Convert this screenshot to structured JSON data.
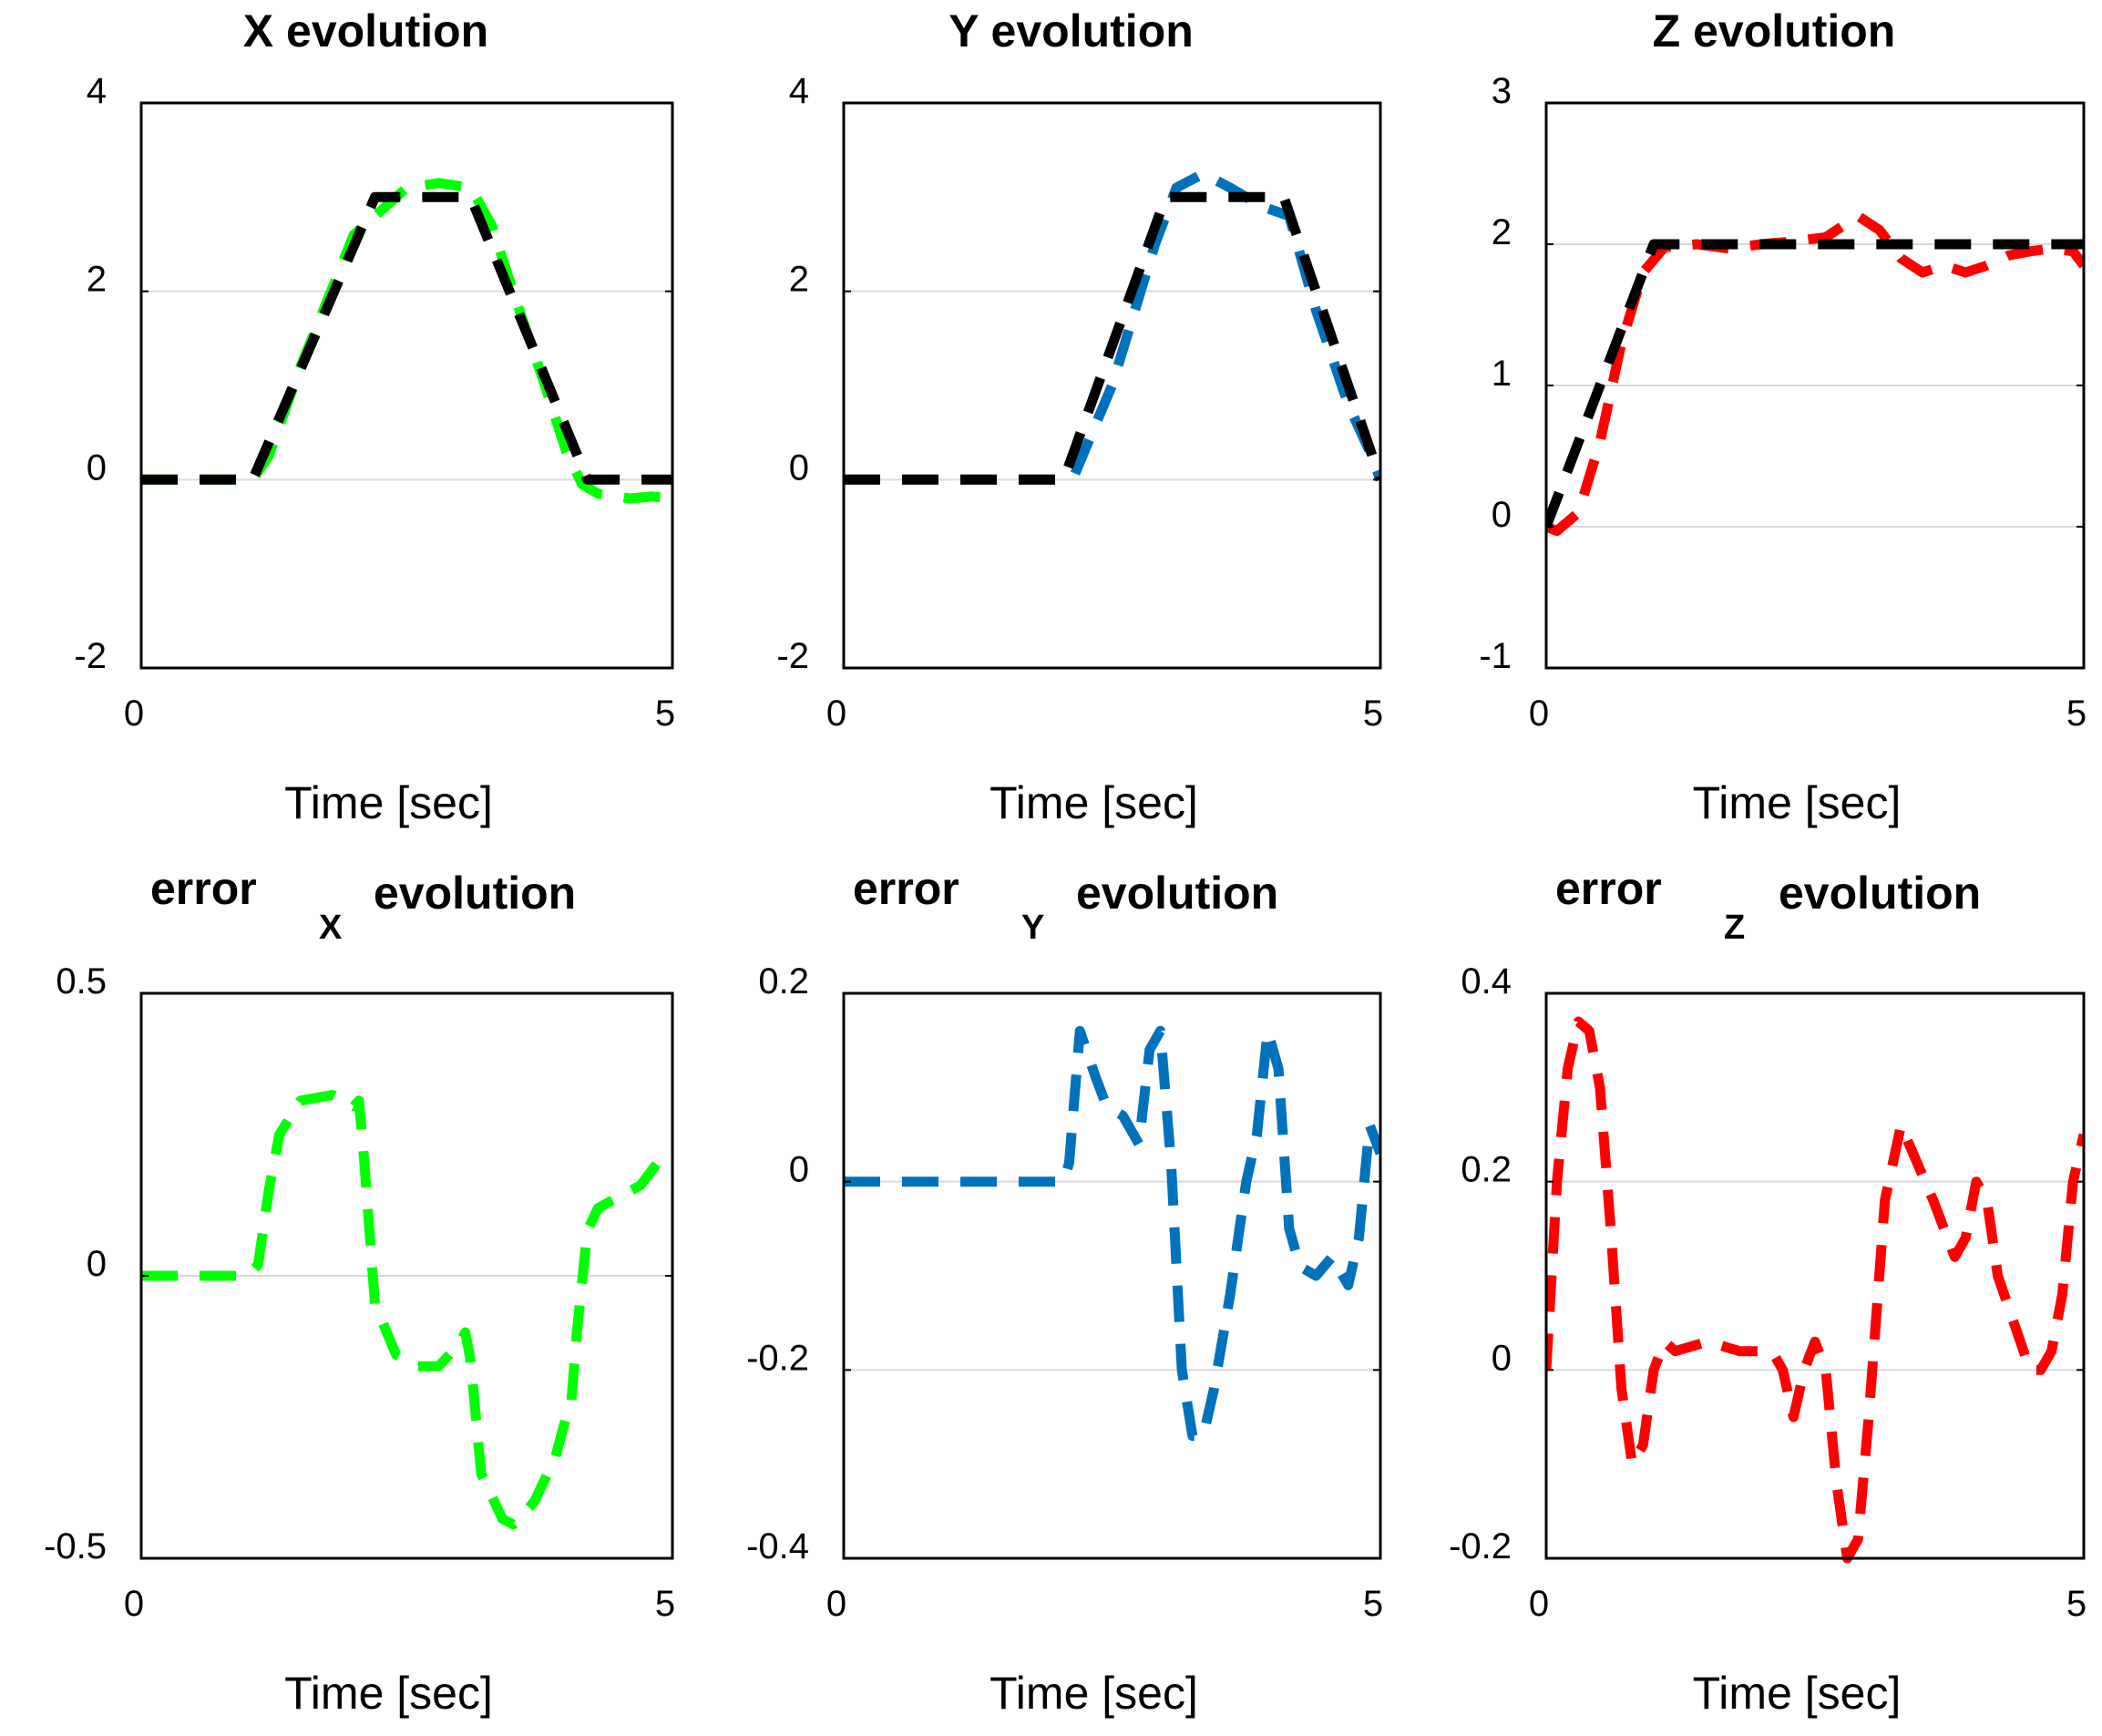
{
  "chart_data": [
    {
      "type": "line",
      "title": "X evolution",
      "xlabel": "Time [sec]",
      "xlim": [
        0,
        5
      ],
      "ylim": [
        -2,
        4
      ],
      "xticks": [
        "0",
        "5"
      ],
      "yticks": [
        {
          "v": -2,
          "label": "-2"
        },
        {
          "v": 0,
          "label": "0"
        },
        {
          "v": 2,
          "label": "2"
        },
        {
          "v": 4,
          "label": "4"
        }
      ],
      "grid": [
        0,
        2
      ],
      "series": [
        {
          "color": "#00ff00",
          "x": [
            0,
            1.05,
            1.2,
            1.5,
            2.0,
            2.5,
            2.8,
            3.1,
            3.3,
            3.5,
            3.8,
            4.0,
            4.15,
            4.3,
            4.6,
            4.8,
            5.0
          ],
          "y": [
            0,
            0,
            0.25,
            1.2,
            2.6,
            3.1,
            3.15,
            3.1,
            2.7,
            2.0,
            1.0,
            0.3,
            -0.05,
            -0.15,
            -0.2,
            -0.18,
            -0.2
          ]
        },
        {
          "color": "#000000",
          "x": [
            0,
            1.05,
            2.2,
            3.1,
            4.2,
            5.0
          ],
          "y": [
            0,
            0,
            3.0,
            3.0,
            0,
            0
          ]
        }
      ]
    },
    {
      "type": "line",
      "title": "Y evolution",
      "xlabel": "Time [sec]",
      "xlim": [
        0,
        5
      ],
      "ylim": [
        -2,
        4
      ],
      "xticks": [
        "0",
        "5"
      ],
      "yticks": [
        {
          "v": -2,
          "label": "-2"
        },
        {
          "v": 0,
          "label": "0"
        },
        {
          "v": 2,
          "label": "2"
        },
        {
          "v": 4,
          "label": "4"
        }
      ],
      "grid": [
        0,
        2
      ],
      "series": [
        {
          "color": "#0072bd",
          "x": [
            0,
            2.05,
            2.15,
            2.5,
            2.9,
            3.1,
            3.35,
            3.6,
            3.9,
            4.15,
            4.4,
            4.7,
            4.9,
            5.0
          ],
          "y": [
            0,
            0,
            0.05,
            1.0,
            2.5,
            3.1,
            3.25,
            3.1,
            2.9,
            2.8,
            1.8,
            0.8,
            0.3,
            0
          ]
        },
        {
          "color": "#000000",
          "x": [
            0,
            2.05,
            3.0,
            4.1,
            5.0
          ],
          "y": [
            0,
            0,
            3.0,
            3.0,
            0
          ]
        }
      ]
    },
    {
      "type": "line",
      "title": "Z evolution",
      "xlabel": "Time [sec]",
      "xlim": [
        0,
        5
      ],
      "ylim": [
        -1,
        3
      ],
      "xticks": [
        "0",
        "5"
      ],
      "yticks": [
        {
          "v": -1,
          "label": "-1"
        },
        {
          "v": 0,
          "label": "0"
        },
        {
          "v": 1,
          "label": "1"
        },
        {
          "v": 2,
          "label": "2"
        },
        {
          "v": 3,
          "label": "3"
        }
      ],
      "grid": [
        0,
        1,
        2
      ],
      "series": [
        {
          "color": "#ff0000",
          "x": [
            0,
            0.1,
            0.3,
            0.5,
            0.7,
            0.9,
            1.1,
            1.4,
            1.7,
            2.0,
            2.3,
            2.6,
            2.8,
            2.9,
            3.1,
            3.3,
            3.5,
            3.7,
            3.9,
            4.1,
            4.3,
            4.5,
            4.7,
            4.9,
            5.0
          ],
          "y": [
            0,
            -0.03,
            0.1,
            0.6,
            1.3,
            1.8,
            1.98,
            2.0,
            1.97,
            2.0,
            2.02,
            2.05,
            2.15,
            2.2,
            2.1,
            1.9,
            1.8,
            1.85,
            1.8,
            1.85,
            1.92,
            1.95,
            1.97,
            1.95,
            1.85
          ]
        },
        {
          "color": "#000000",
          "x": [
            0,
            1.0,
            5.0
          ],
          "y": [
            0,
            2.0,
            2.0
          ]
        }
      ]
    },
    {
      "type": "line",
      "title": "error",
      "title_subscript": "X",
      "title_suffix": "evolution",
      "xlabel": "Time [sec]",
      "xlim": [
        0,
        5
      ],
      "ylim": [
        -0.5,
        0.5
      ],
      "xticks": [
        "0",
        "5"
      ],
      "yticks": [
        {
          "v": -0.5,
          "label": "-0.5"
        },
        {
          "v": 0,
          "label": "0"
        },
        {
          "v": 0.5,
          "label": "0.5"
        }
      ],
      "grid": [
        0
      ],
      "series": [
        {
          "color": "#00ff00",
          "x": [
            0,
            1.0,
            1.1,
            1.2,
            1.3,
            1.5,
            1.8,
            2.0,
            2.05,
            2.1,
            2.2,
            2.4,
            2.6,
            2.8,
            2.9,
            3.0,
            3.05,
            3.1,
            3.2,
            3.4,
            3.5,
            3.7,
            3.9,
            4.0,
            4.05,
            4.1,
            4.2,
            4.3,
            4.5,
            4.7,
            4.9
          ],
          "y": [
            0,
            0,
            0.02,
            0.15,
            0.25,
            0.31,
            0.32,
            0.3,
            0.31,
            0.2,
            -0.05,
            -0.14,
            -0.16,
            -0.16,
            -0.14,
            -0.12,
            -0.1,
            -0.15,
            -0.35,
            -0.43,
            -0.44,
            -0.4,
            -0.32,
            -0.25,
            -0.22,
            -0.1,
            0.08,
            0.12,
            0.14,
            0.16,
            0.21
          ]
        }
      ]
    },
    {
      "type": "line",
      "title": "error",
      "title_subscript": "Y",
      "title_suffix": "evolution",
      "xlabel": "Time [sec]",
      "xlim": [
        0,
        5
      ],
      "ylim": [
        -0.4,
        0.2
      ],
      "xticks": [
        "0",
        "5"
      ],
      "yticks": [
        {
          "v": -0.4,
          "label": "-0.4"
        },
        {
          "v": -0.2,
          "label": "-0.2"
        },
        {
          "v": 0,
          "label": "0"
        },
        {
          "v": 0.2,
          "label": "0.2"
        }
      ],
      "grid": [
        0,
        -0.2
      ],
      "series": [
        {
          "color": "#0072bd",
          "x": [
            0,
            2.05,
            2.1,
            2.2,
            2.35,
            2.45,
            2.6,
            2.75,
            2.85,
            2.95,
            3.05,
            3.15,
            3.25,
            3.35,
            3.45,
            3.6,
            3.75,
            3.85,
            3.95,
            4.05,
            4.15,
            4.25,
            4.4,
            4.55,
            4.7,
            4.8,
            4.9,
            5.0
          ],
          "y": [
            0,
            0,
            0.02,
            0.16,
            0.11,
            0.08,
            0.07,
            0.04,
            0.14,
            0.16,
            0.02,
            -0.2,
            -0.27,
            -0.27,
            -0.22,
            -0.12,
            0.0,
            0.05,
            0.16,
            0.12,
            -0.05,
            -0.09,
            -0.1,
            -0.08,
            -0.11,
            -0.06,
            0.06,
            0.03
          ]
        }
      ]
    },
    {
      "type": "line",
      "title": "error",
      "title_subscript": "Z",
      "title_suffix": "evolution",
      "xlabel": "Time [sec]",
      "xlim": [
        0,
        5
      ],
      "ylim": [
        -0.2,
        0.4
      ],
      "xticks": [
        "0",
        "5"
      ],
      "yticks": [
        {
          "v": -0.2,
          "label": "-0.2"
        },
        {
          "v": 0,
          "label": "0"
        },
        {
          "v": 0.2,
          "label": "0.2"
        },
        {
          "v": 0.4,
          "label": "0.4"
        }
      ],
      "grid": [
        0,
        0.2
      ],
      "series": [
        {
          "color": "#ff0000",
          "x": [
            0,
            0.1,
            0.2,
            0.3,
            0.4,
            0.5,
            0.6,
            0.7,
            0.8,
            0.9,
            1.0,
            1.1,
            1.2,
            1.5,
            1.8,
            2.1,
            2.2,
            2.3,
            2.4,
            2.5,
            2.6,
            2.7,
            2.8,
            2.9,
            3.0,
            3.15,
            3.3,
            3.45,
            3.6,
            3.8,
            3.9,
            4.0,
            4.1,
            4.2,
            4.35,
            4.5,
            4.6,
            4.7,
            4.8,
            4.9,
            5.0
          ],
          "y": [
            0,
            0.2,
            0.32,
            0.37,
            0.36,
            0.3,
            0.15,
            -0.02,
            -0.1,
            -0.08,
            0.0,
            0.03,
            0.02,
            0.03,
            0.02,
            0.02,
            0.0,
            -0.05,
            0.0,
            0.03,
            0.0,
            -0.12,
            -0.2,
            -0.18,
            -0.05,
            0.18,
            0.26,
            0.22,
            0.18,
            0.12,
            0.14,
            0.2,
            0.18,
            0.1,
            0.05,
            0.0,
            0.0,
            0.02,
            0.08,
            0.2,
            0.25
          ]
        }
      ]
    }
  ]
}
